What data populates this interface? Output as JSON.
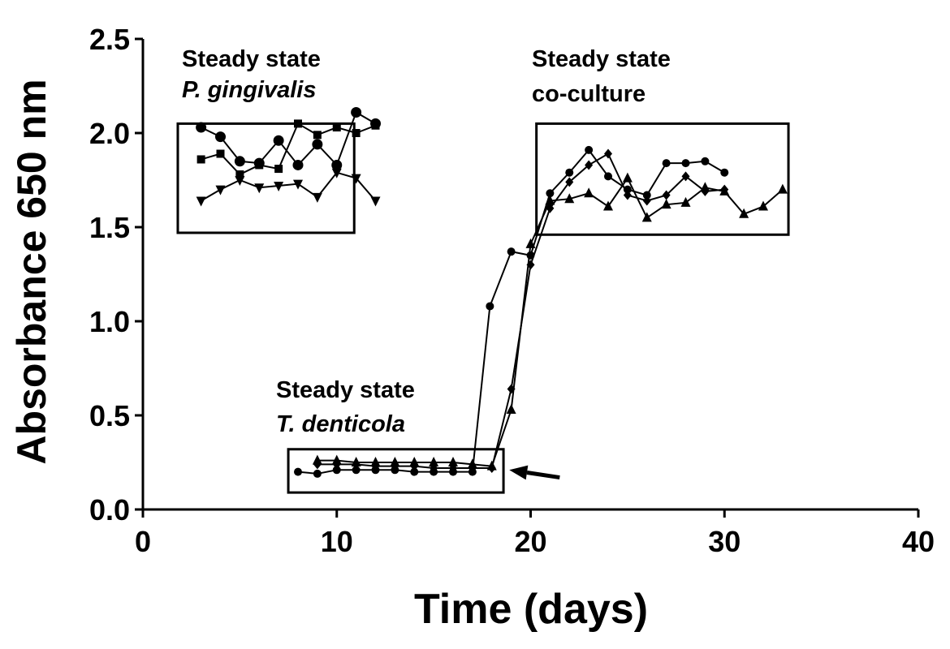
{
  "chart_data": {
    "type": "line",
    "xlabel": "Time (days)",
    "ylabel": "Absorbance 650 nm",
    "xlim": [
      0,
      40
    ],
    "ylim": [
      0,
      2.5
    ],
    "xticks": [
      "0",
      "10",
      "20",
      "30",
      "40"
    ],
    "yticks": [
      "0.0",
      "0.5",
      "1.0",
      "1.5",
      "2.0",
      "2.5"
    ],
    "grid": false,
    "legend": "none",
    "annotations": [
      {
        "line1": "Steady state",
        "line2": "P. gingivalis"
      },
      {
        "line1": "Steady state",
        "line2": "co-culture"
      },
      {
        "line1": "Steady state",
        "line2": "T. denticola"
      }
    ],
    "boxes": [
      {
        "x": [
          1.8,
          10.9
        ],
        "y": [
          1.47,
          2.05
        ]
      },
      {
        "x": [
          20.3,
          33.3
        ],
        "y": [
          1.46,
          2.05
        ]
      },
      {
        "x": [
          7.5,
          18.6
        ],
        "y": [
          0.09,
          0.32
        ]
      }
    ],
    "series": [
      {
        "marker": "circle",
        "points": [
          [
            3,
            2.03
          ],
          [
            4,
            1.98
          ],
          [
            5,
            1.85
          ],
          [
            6,
            1.84
          ],
          [
            7,
            1.96
          ],
          [
            8,
            1.83
          ],
          [
            9,
            1.94
          ],
          [
            10,
            1.83
          ],
          [
            11,
            2.11
          ],
          [
            12,
            2.05
          ]
        ]
      },
      {
        "marker": "square",
        "points": [
          [
            3,
            1.86
          ],
          [
            4,
            1.89
          ],
          [
            5,
            1.78
          ],
          [
            6,
            1.83
          ],
          [
            7,
            1.81
          ],
          [
            8,
            2.05
          ],
          [
            9,
            1.99
          ],
          [
            10,
            2.03
          ],
          [
            11,
            2.0
          ],
          [
            12,
            2.04
          ]
        ]
      },
      {
        "marker": "triangle-down",
        "points": [
          [
            3,
            1.64
          ],
          [
            4,
            1.7
          ],
          [
            5,
            1.75
          ],
          [
            6,
            1.71
          ],
          [
            7,
            1.72
          ],
          [
            8,
            1.73
          ],
          [
            9,
            1.66
          ],
          [
            10,
            1.79
          ],
          [
            11,
            1.76
          ],
          [
            12,
            1.64
          ]
        ]
      },
      {
        "marker": "circle-small",
        "points": [
          [
            8,
            0.2
          ],
          [
            9,
            0.19
          ],
          [
            10,
            0.21
          ],
          [
            11,
            0.21
          ],
          [
            12,
            0.21
          ],
          [
            13,
            0.21
          ],
          [
            14,
            0.2
          ],
          [
            15,
            0.2
          ],
          [
            16,
            0.2
          ],
          [
            17,
            0.2
          ],
          [
            17.9,
            1.08
          ],
          [
            19,
            1.37
          ],
          [
            20,
            1.35
          ],
          [
            21,
            1.68
          ],
          [
            22,
            1.79
          ],
          [
            23,
            1.91
          ],
          [
            24,
            1.77
          ],
          [
            25,
            1.7
          ],
          [
            26,
            1.67
          ],
          [
            27,
            1.84
          ],
          [
            28,
            1.84
          ],
          [
            29,
            1.85
          ],
          [
            30,
            1.79
          ]
        ]
      },
      {
        "marker": "diamond",
        "points": [
          [
            9,
            0.24
          ],
          [
            10,
            0.24
          ],
          [
            11,
            0.24
          ],
          [
            12,
            0.23
          ],
          [
            13,
            0.23
          ],
          [
            14,
            0.23
          ],
          [
            15,
            0.22
          ],
          [
            16,
            0.22
          ],
          [
            17,
            0.22
          ],
          [
            18,
            0.22
          ],
          [
            19,
            0.64
          ],
          [
            20,
            1.3
          ],
          [
            21,
            1.6
          ],
          [
            22,
            1.74
          ],
          [
            23,
            1.83
          ],
          [
            24,
            1.89
          ],
          [
            25,
            1.67
          ],
          [
            26,
            1.64
          ],
          [
            27,
            1.67
          ],
          [
            28,
            1.77
          ],
          [
            29,
            1.69
          ],
          [
            30,
            1.7
          ]
        ]
      },
      {
        "marker": "triangle-up",
        "points": [
          [
            9,
            0.26
          ],
          [
            10,
            0.26
          ],
          [
            11,
            0.25
          ],
          [
            12,
            0.25
          ],
          [
            13,
            0.25
          ],
          [
            14,
            0.25
          ],
          [
            15,
            0.25
          ],
          [
            16,
            0.25
          ],
          [
            17,
            0.24
          ],
          [
            18,
            0.23
          ],
          [
            19,
            0.53
          ],
          [
            20,
            1.41
          ],
          [
            21,
            1.64
          ],
          [
            22,
            1.65
          ],
          [
            23,
            1.68
          ],
          [
            24,
            1.61
          ],
          [
            25,
            1.76
          ],
          [
            26,
            1.55
          ],
          [
            27,
            1.62
          ],
          [
            28,
            1.63
          ],
          [
            29,
            1.71
          ],
          [
            30,
            1.69
          ],
          [
            31,
            1.57
          ],
          [
            32,
            1.61
          ],
          [
            33,
            1.7
          ]
        ]
      }
    ],
    "arrow": {
      "from": [
        21.5,
        0.17
      ],
      "to": [
        18.9,
        0.21
      ]
    }
  }
}
